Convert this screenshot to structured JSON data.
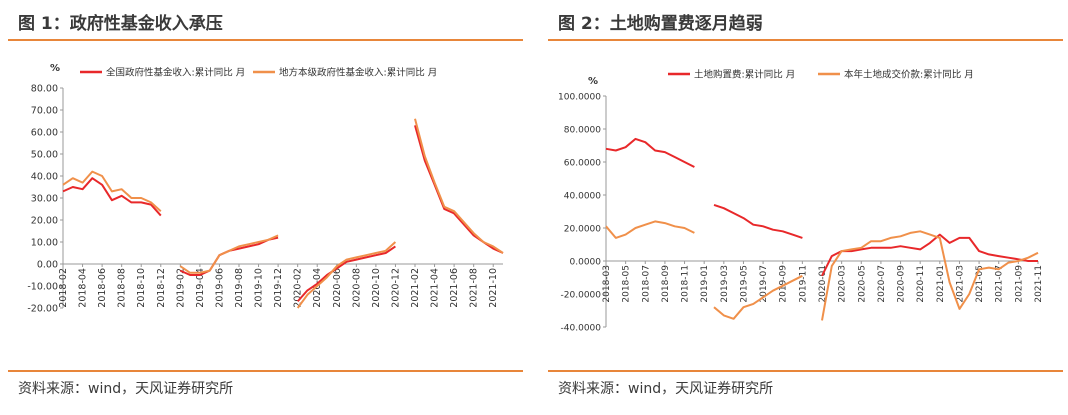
{
  "colors": {
    "accent_rule": "#e8863a",
    "series_red": "#e8282a",
    "series_orange": "#f0904a"
  },
  "charts": [
    {
      "figure_title": "图 1：政府性基金收入承压",
      "source": "资料来源：wind，天风证券研究所",
      "chart_data": {
        "type": "line",
        "title": "图 1：政府性基金收入承压",
        "ylabel": "%",
        "ylim": [
          -20,
          80
        ],
        "yticks": [
          -20,
          -10,
          0,
          10,
          20,
          30,
          40,
          50,
          60,
          70,
          80
        ],
        "ytick_labels": [
          "-20.00",
          "-10.00",
          "0.00",
          "10.00",
          "20.00",
          "30.00",
          "40.00",
          "50.00",
          "60.00",
          "70.00",
          "80.00"
        ],
        "grid": false,
        "legend_position": "top",
        "x": [
          "2018-02",
          "2018-03",
          "2018-04",
          "2018-05",
          "2018-06",
          "2018-07",
          "2018-08",
          "2018-09",
          "2018-10",
          "2018-11",
          "2018-12",
          "2019-01",
          "2019-02",
          "2019-03",
          "2019-04",
          "2019-05",
          "2019-06",
          "2019-07",
          "2019-08",
          "2019-09",
          "2019-10",
          "2019-11",
          "2019-12",
          "2020-01",
          "2020-02",
          "2020-03",
          "2020-04",
          "2020-05",
          "2020-06",
          "2020-07",
          "2020-08",
          "2020-09",
          "2020-10",
          "2020-11",
          "2020-12",
          "2021-01",
          "2021-02",
          "2021-03",
          "2021-04",
          "2021-05",
          "2021-06",
          "2021-07",
          "2021-08",
          "2021-09",
          "2021-10",
          "2021-11"
        ],
        "xticks": [
          "2018-02",
          "2018-04",
          "2018-06",
          "2018-08",
          "2018-10",
          "2018-12",
          "2019-02",
          "2019-04",
          "2019-06",
          "2019-08",
          "2019-10",
          "2019-12",
          "2020-02",
          "2020-04",
          "2020-06",
          "2020-08",
          "2020-10",
          "2020-12",
          "2021-02",
          "2021-04",
          "2021-06",
          "2021-08",
          "2021-10"
        ],
        "series": [
          {
            "name": "全国政府性基金收入:累计同比 月",
            "color": "#e8282a",
            "values": [
              33,
              35,
              34,
              39,
              36,
              29,
              31,
              28,
              28,
              27,
              22,
              null,
              -3,
              -5,
              -5,
              -3,
              4,
              6,
              7,
              8,
              9,
              11,
              12,
              null,
              -17,
              -12,
              -9,
              -5,
              -2,
              1,
              2,
              3,
              4,
              5,
              8,
              null,
              63,
              47,
              36,
              25,
              23,
              18,
              13,
              10,
              7,
              5
            ]
          },
          {
            "name": "地方本级政府性基金收入:累计同比 月",
            "color": "#f0904a",
            "values": [
              36,
              39,
              37,
              42,
              40,
              33,
              34,
              30,
              30,
              28,
              24,
              null,
              -1,
              -4,
              -4,
              -3,
              4,
              6,
              8,
              9,
              10,
              11,
              13,
              null,
              -20,
              -14,
              -10,
              -6,
              -1,
              2,
              3,
              4,
              5,
              6,
              10,
              null,
              66,
              49,
              37,
              26,
              24,
              19,
              14,
              10,
              8,
              5
            ]
          }
        ]
      }
    },
    {
      "figure_title": "图 2：土地购置费逐月趋弱",
      "source": "资料来源：wind，天风证券研究所",
      "chart_data": {
        "type": "line",
        "title": "图 2：土地购置费逐月趋弱",
        "ylabel": "%",
        "ylim": [
          -40,
          100
        ],
        "yticks": [
          -40,
          -20,
          0,
          20,
          40,
          60,
          80,
          100
        ],
        "ytick_labels": [
          "-40.0000",
          "-20.0000",
          "0.0000",
          "20.0000",
          "40.0000",
          "60.0000",
          "80.0000",
          "100.0000"
        ],
        "grid": false,
        "legend_position": "top",
        "x": [
          "2018-03",
          "2018-04",
          "2018-05",
          "2018-06",
          "2018-07",
          "2018-08",
          "2018-09",
          "2018-10",
          "2018-11",
          "2018-12",
          "2019-01",
          "2019-02",
          "2019-03",
          "2019-04",
          "2019-05",
          "2019-06",
          "2019-07",
          "2019-08",
          "2019-09",
          "2019-10",
          "2019-11",
          "2019-12",
          "2020-01",
          "2020-02",
          "2020-03",
          "2020-04",
          "2020-05",
          "2020-06",
          "2020-07",
          "2020-08",
          "2020-09",
          "2020-10",
          "2020-11",
          "2020-12",
          "2021-01",
          "2021-02",
          "2021-03",
          "2021-04",
          "2021-05",
          "2021-06",
          "2021-07",
          "2021-08",
          "2021-09",
          "2021-10",
          "2021-11"
        ],
        "xticks": [
          "2018-03",
          "2018-05",
          "2018-07",
          "2018-09",
          "2018-11",
          "2019-01",
          "2019-03",
          "2019-05",
          "2019-07",
          "2019-09",
          "2019-11",
          "2020-01",
          "2020-03",
          "2020-05",
          "2020-07",
          "2020-09",
          "2020-11",
          "2021-01",
          "2021-03",
          "2021-05",
          "2021-07",
          "2021-09",
          "2021-11"
        ],
        "series": [
          {
            "name": "土地购置费:累计同比 月",
            "color": "#e8282a",
            "values": [
              68,
              67,
              69,
              74,
              72,
              67,
              66,
              63,
              60,
              57,
              null,
              34,
              32,
              29,
              26,
              22,
              21,
              19,
              18,
              16,
              14,
              null,
              -9,
              3,
              6,
              6,
              7,
              8,
              8,
              8,
              9,
              8,
              7,
              11,
              16,
              11,
              14,
              14,
              6,
              4,
              3,
              2,
              1,
              0,
              0
            ]
          },
          {
            "name": "本年土地成交价款:累计同比 月",
            "color": "#f0904a",
            "values": [
              21,
              14,
              16,
              20,
              22,
              24,
              23,
              21,
              20,
              17,
              null,
              -28,
              -33,
              -35,
              -28,
              -26,
              -22,
              -18,
              -15,
              -12,
              -9,
              null,
              -36,
              -3,
              6,
              7,
              8,
              12,
              12,
              14,
              15,
              17,
              18,
              16,
              14,
              -13,
              -29,
              -20,
              -5,
              -4,
              -5,
              -1,
              0,
              2,
              5
            ]
          }
        ]
      }
    }
  ]
}
